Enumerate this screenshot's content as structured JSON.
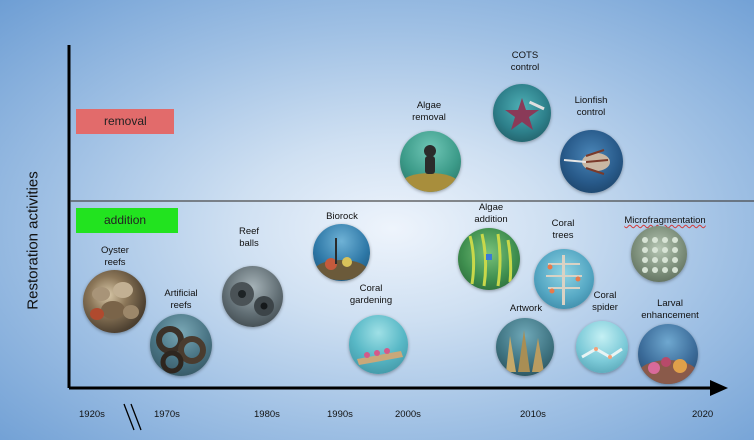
{
  "y_axis_label": "Restoration activities",
  "categories": {
    "removal": {
      "label": "removal",
      "color": "#e26b6b"
    },
    "addition": {
      "label": "addition",
      "color": "#22e31f"
    }
  },
  "timeline": [
    "1920s",
    "1970s",
    "1980s",
    "1990s",
    "2000s",
    "2010s",
    "2020"
  ],
  "activities": [
    {
      "label": "Oyster\nreefs",
      "category": "addition"
    },
    {
      "label": "Artificial\nreefs",
      "category": "addition"
    },
    {
      "label": "Reef\nballs",
      "category": "addition"
    },
    {
      "label": "Biorock",
      "category": "addition"
    },
    {
      "label": "Coral\ngardening",
      "category": "addition"
    },
    {
      "label": "Algae\nremoval",
      "category": "removal"
    },
    {
      "label": "COTS\ncontrol",
      "category": "removal"
    },
    {
      "label": "Lionfish\ncontrol",
      "category": "removal"
    },
    {
      "label": "Algae\naddition",
      "category": "addition"
    },
    {
      "label": "Coral\ntrees",
      "category": "addition"
    },
    {
      "label": "Artwork",
      "category": "addition"
    },
    {
      "label": "Coral\nspider",
      "category": "addition"
    },
    {
      "label": "Microfragmentation",
      "category": "addition"
    },
    {
      "label": "Larval\nenhancement",
      "category": "addition"
    }
  ]
}
